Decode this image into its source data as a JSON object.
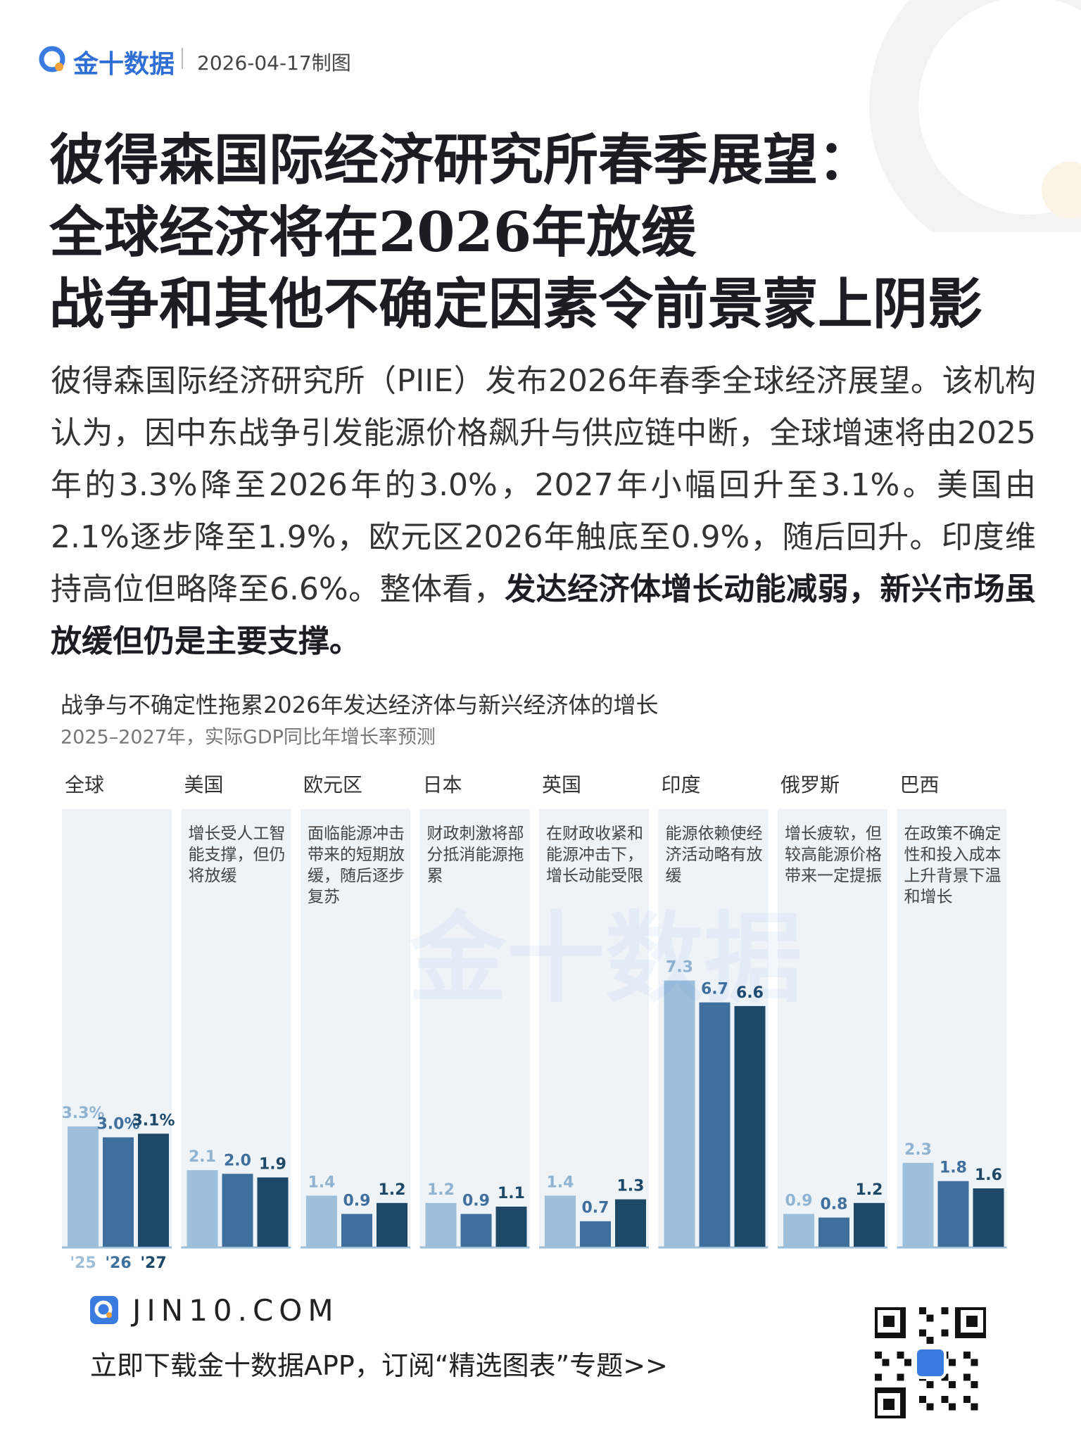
{
  "header": {
    "logo": "金十数据",
    "date": "2026-04-17制图"
  },
  "title": [
    "彼得森国际经济研究所春季展望：",
    "全球经济将在2026年放缓",
    "战争和其他不确定因素令前景蒙上阴影"
  ],
  "body": {
    "text": "彼得森国际经济研究所（PIIE）发布2026年春季全球经济展望。该机构认为，因中东战争引发能源价格飙升与供应链中断，全球增速将由2025年的3.3%降至2026年的3.0%，2027年小幅回升至3.1%。美国由2.1%逐步降至1.9%，欧元区2026年触底至0.9%，随后回升。印度维持高位但略降至6.6%。整体看，",
    "emphasis": "发达经济体增长动能减弱，新兴市场虽放缓但仍是主要支撑。"
  },
  "chart_data": {
    "type": "bar",
    "title": "战争与不确定性拖累2026年发达经济体与新兴经济体的增长",
    "subtitle": "2025–2027年，实际GDP同比年增长率预测",
    "categories": [
      "全球",
      "美国",
      "欧元区",
      "日本",
      "英国",
      "印度",
      "俄罗斯",
      "巴西"
    ],
    "annotations": [
      null,
      "增长受人工智能支撑，但仍将放缓",
      "面临能源冲击带来的短期放缓，随后逐步复苏",
      "财政刺激将部分抵消能源拖累",
      "在财政收紧和能源冲击下，增长动能受限",
      "能源依赖使经济活动略有放缓",
      "增长疲软，但较高能源价格带来一定提振",
      "在政策不确定性和投入成本上升背景下温和增长"
    ],
    "series": [
      {
        "name": "'25",
        "color": "#9dbfda",
        "values": [
          3.3,
          2.1,
          1.4,
          1.2,
          1.4,
          7.3,
          0.9,
          2.3
        ],
        "value_labels": [
          "3.3%",
          "2.1",
          "1.4",
          "1.2",
          "1.4",
          "7.3",
          "0.9",
          "2.3"
        ]
      },
      {
        "name": "'26",
        "color": "#3f6f9c",
        "values": [
          3.0,
          2.0,
          0.9,
          0.9,
          0.7,
          6.7,
          0.8,
          1.8
        ],
        "value_labels": [
          "3.0%",
          "2.0",
          "0.9",
          "0.9",
          "0.7",
          "6.7",
          "0.8",
          "1.8"
        ]
      },
      {
        "name": "'27",
        "color": "#1d4868",
        "values": [
          3.1,
          1.9,
          1.2,
          1.1,
          1.3,
          6.6,
          1.2,
          1.6
        ],
        "value_labels": [
          "3.1%",
          "1.9",
          "1.2",
          "1.1",
          "1.3",
          "6.6",
          "1.2",
          "1.6"
        ]
      }
    ],
    "ylim": [
      0,
      12
    ]
  },
  "watermark": "金十数据",
  "footer": {
    "url": "JIN10.COM",
    "cta": "立即下载金十数据APP，订阅“精选图表”专题>>"
  }
}
